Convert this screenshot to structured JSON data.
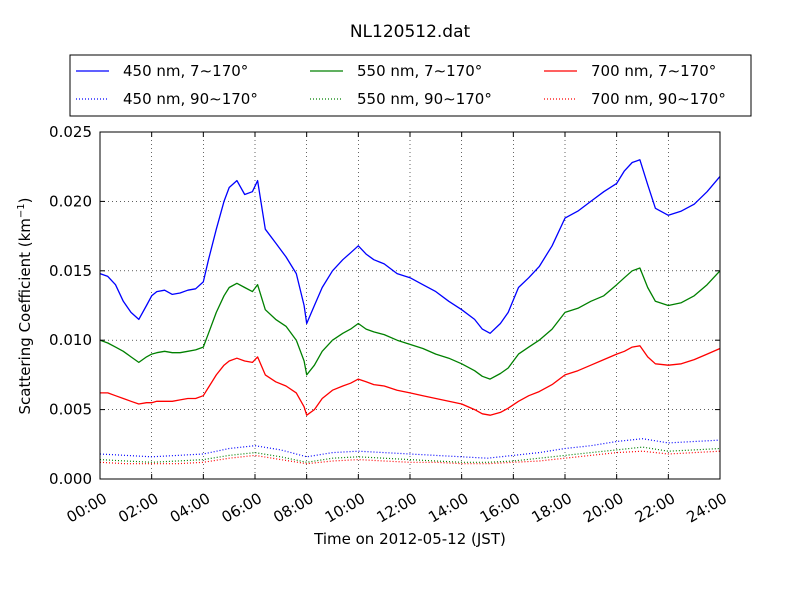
{
  "chart_data": {
    "type": "line",
    "title": "NL120512.dat",
    "xlabel": "Time on 2012-05-12 (JST)",
    "ylabel_main": "Scattering Coefficient (km",
    "ylabel_sup": "−1",
    "ylabel_close": ")",
    "xlim": [
      0,
      24
    ],
    "ylim": [
      0,
      0.025
    ],
    "x_ticks": [
      0,
      2,
      4,
      6,
      8,
      10,
      12,
      14,
      16,
      18,
      20,
      22,
      24
    ],
    "x_tick_labels": [
      "00:00",
      "02:00",
      "04:00",
      "06:00",
      "08:00",
      "10:00",
      "12:00",
      "14:00",
      "16:00",
      "18:00",
      "20:00",
      "22:00",
      "24:00"
    ],
    "y_ticks": [
      0,
      0.005,
      0.01,
      0.015,
      0.02,
      0.025
    ],
    "y_tick_labels": [
      "0.000",
      "0.005",
      "0.010",
      "0.015",
      "0.020",
      "0.025"
    ],
    "grid": true,
    "legend_placement": "top, outside plot",
    "series": [
      {
        "name": "450 nm, 7∼170°",
        "color": "#0000ff",
        "style": "solid",
        "x": [
          0,
          0.3,
          0.6,
          0.9,
          1.2,
          1.5,
          1.8,
          2.0,
          2.2,
          2.5,
          2.8,
          3.1,
          3.4,
          3.7,
          4.0,
          4.2,
          4.5,
          4.8,
          5.0,
          5.3,
          5.6,
          5.9,
          6.1,
          6.4,
          6.8,
          7.2,
          7.6,
          7.9,
          8.0,
          8.3,
          8.6,
          9.0,
          9.4,
          9.7,
          10.0,
          10.3,
          10.6,
          11.0,
          11.5,
          12.0,
          12.5,
          13.0,
          13.5,
          14.0,
          14.5,
          14.8,
          15.1,
          15.5,
          15.8,
          16.2,
          16.6,
          17.0,
          17.5,
          18.0,
          18.5,
          19.0,
          19.5,
          20.0,
          20.3,
          20.6,
          20.9,
          21.2,
          21.5,
          22.0,
          22.5,
          23.0,
          23.5,
          24.0
        ],
        "values": [
          0.0148,
          0.0146,
          0.014,
          0.0128,
          0.012,
          0.0115,
          0.0125,
          0.0132,
          0.0135,
          0.0136,
          0.0133,
          0.0134,
          0.0136,
          0.0137,
          0.0142,
          0.0158,
          0.018,
          0.02,
          0.021,
          0.0215,
          0.0205,
          0.0207,
          0.0215,
          0.018,
          0.017,
          0.016,
          0.0148,
          0.0125,
          0.0112,
          0.0125,
          0.0138,
          0.015,
          0.0158,
          0.0163,
          0.0168,
          0.0162,
          0.0158,
          0.0155,
          0.0148,
          0.0145,
          0.014,
          0.0135,
          0.0128,
          0.0122,
          0.0115,
          0.0108,
          0.0105,
          0.0112,
          0.012,
          0.0138,
          0.0145,
          0.0153,
          0.0168,
          0.0188,
          0.0193,
          0.02,
          0.0207,
          0.0213,
          0.0222,
          0.0228,
          0.023,
          0.0212,
          0.0195,
          0.019,
          0.0193,
          0.0198,
          0.0207,
          0.0218
        ]
      },
      {
        "name": "550 nm, 7∼170°",
        "color": "#008000",
        "style": "solid",
        "x": [
          0,
          0.3,
          0.6,
          0.9,
          1.2,
          1.5,
          1.8,
          2.0,
          2.2,
          2.5,
          2.8,
          3.1,
          3.4,
          3.7,
          4.0,
          4.2,
          4.5,
          4.8,
          5.0,
          5.3,
          5.6,
          5.9,
          6.1,
          6.4,
          6.8,
          7.2,
          7.6,
          7.9,
          8.0,
          8.3,
          8.6,
          9.0,
          9.4,
          9.7,
          10.0,
          10.3,
          10.6,
          11.0,
          11.5,
          12.0,
          12.5,
          13.0,
          13.5,
          14.0,
          14.5,
          14.8,
          15.1,
          15.5,
          15.8,
          16.2,
          16.6,
          17.0,
          17.5,
          18.0,
          18.5,
          19.0,
          19.5,
          20.0,
          20.3,
          20.6,
          20.9,
          21.2,
          21.5,
          22.0,
          22.5,
          23.0,
          23.5,
          24.0
        ],
        "values": [
          0.01,
          0.0098,
          0.0095,
          0.0092,
          0.0088,
          0.0084,
          0.0088,
          0.009,
          0.0091,
          0.0092,
          0.0091,
          0.0091,
          0.0092,
          0.0093,
          0.0095,
          0.0105,
          0.012,
          0.0132,
          0.0138,
          0.0141,
          0.0138,
          0.0135,
          0.014,
          0.0122,
          0.0115,
          0.011,
          0.01,
          0.0085,
          0.0075,
          0.0082,
          0.0092,
          0.01,
          0.0105,
          0.0108,
          0.0112,
          0.0108,
          0.0106,
          0.0104,
          0.01,
          0.0097,
          0.0094,
          0.009,
          0.0087,
          0.0083,
          0.0078,
          0.0074,
          0.0072,
          0.0076,
          0.008,
          0.009,
          0.0095,
          0.01,
          0.0108,
          0.012,
          0.0123,
          0.0128,
          0.0132,
          0.014,
          0.0145,
          0.015,
          0.0152,
          0.0138,
          0.0128,
          0.0125,
          0.0127,
          0.0132,
          0.014,
          0.015
        ]
      },
      {
        "name": "700 nm, 7∼170°",
        "color": "#ff0000",
        "style": "solid",
        "x": [
          0,
          0.3,
          0.6,
          0.9,
          1.2,
          1.5,
          1.8,
          2.0,
          2.2,
          2.5,
          2.8,
          3.1,
          3.4,
          3.7,
          4.0,
          4.2,
          4.5,
          4.8,
          5.0,
          5.3,
          5.6,
          5.9,
          6.1,
          6.4,
          6.8,
          7.2,
          7.6,
          7.9,
          8.0,
          8.3,
          8.6,
          9.0,
          9.4,
          9.7,
          10.0,
          10.3,
          10.6,
          11.0,
          11.5,
          12.0,
          12.5,
          13.0,
          13.5,
          14.0,
          14.5,
          14.8,
          15.1,
          15.5,
          15.8,
          16.2,
          16.6,
          17.0,
          17.5,
          18.0,
          18.5,
          19.0,
          19.5,
          20.0,
          20.3,
          20.6,
          20.9,
          21.2,
          21.5,
          22.0,
          22.5,
          23.0,
          23.5,
          24.0
        ],
        "values": [
          0.0062,
          0.0062,
          0.006,
          0.0058,
          0.0056,
          0.0054,
          0.0055,
          0.0055,
          0.0056,
          0.0056,
          0.0056,
          0.0057,
          0.0058,
          0.0058,
          0.006,
          0.0066,
          0.0075,
          0.0082,
          0.0085,
          0.0087,
          0.0085,
          0.0084,
          0.0088,
          0.0075,
          0.007,
          0.0067,
          0.0062,
          0.0052,
          0.0046,
          0.005,
          0.0058,
          0.0064,
          0.0067,
          0.0069,
          0.0072,
          0.007,
          0.0068,
          0.0067,
          0.0064,
          0.0062,
          0.006,
          0.0058,
          0.0056,
          0.0054,
          0.005,
          0.0047,
          0.0046,
          0.0048,
          0.0051,
          0.0056,
          0.006,
          0.0063,
          0.0068,
          0.0075,
          0.0078,
          0.0082,
          0.0086,
          0.009,
          0.0092,
          0.0095,
          0.0096,
          0.0088,
          0.0083,
          0.0082,
          0.0083,
          0.0086,
          0.009,
          0.0094
        ]
      },
      {
        "name": "450 nm, 90∼170°",
        "color": "#0000ff",
        "style": "dotted",
        "x": [
          0,
          1,
          2,
          3,
          4,
          5,
          6,
          7,
          8,
          9,
          10,
          11,
          12,
          13,
          14,
          15,
          16,
          17,
          18,
          19,
          20,
          21,
          22,
          23,
          24
        ],
        "values": [
          0.0018,
          0.0017,
          0.0016,
          0.0017,
          0.0018,
          0.0022,
          0.0024,
          0.0021,
          0.0016,
          0.0019,
          0.002,
          0.0019,
          0.0018,
          0.0017,
          0.0016,
          0.0015,
          0.0017,
          0.0019,
          0.0022,
          0.0024,
          0.0027,
          0.0029,
          0.0026,
          0.0027,
          0.0028
        ]
      },
      {
        "name": "550 nm, 90∼170°",
        "color": "#008000",
        "style": "dotted",
        "x": [
          0,
          1,
          2,
          3,
          4,
          5,
          6,
          7,
          8,
          9,
          10,
          11,
          12,
          13,
          14,
          15,
          16,
          17,
          18,
          19,
          20,
          21,
          22,
          23,
          24
        ],
        "values": [
          0.0014,
          0.0013,
          0.0012,
          0.0013,
          0.0014,
          0.0017,
          0.0019,
          0.0016,
          0.0012,
          0.0015,
          0.0016,
          0.0015,
          0.0014,
          0.0013,
          0.0012,
          0.0012,
          0.0013,
          0.0015,
          0.0017,
          0.0019,
          0.0021,
          0.0023,
          0.002,
          0.0021,
          0.0022
        ]
      },
      {
        "name": "700 nm, 90∼170°",
        "color": "#ff0000",
        "style": "dotted",
        "x": [
          0,
          1,
          2,
          3,
          4,
          5,
          6,
          7,
          8,
          9,
          10,
          11,
          12,
          13,
          14,
          15,
          16,
          17,
          18,
          19,
          20,
          21,
          22,
          23,
          24
        ],
        "values": [
          0.0012,
          0.0011,
          0.0011,
          0.0011,
          0.0012,
          0.0015,
          0.0017,
          0.0014,
          0.0011,
          0.0013,
          0.0014,
          0.0013,
          0.0012,
          0.0012,
          0.0011,
          0.0011,
          0.0012,
          0.0013,
          0.0015,
          0.0017,
          0.0019,
          0.002,
          0.0018,
          0.0019,
          0.002
        ]
      }
    ]
  }
}
